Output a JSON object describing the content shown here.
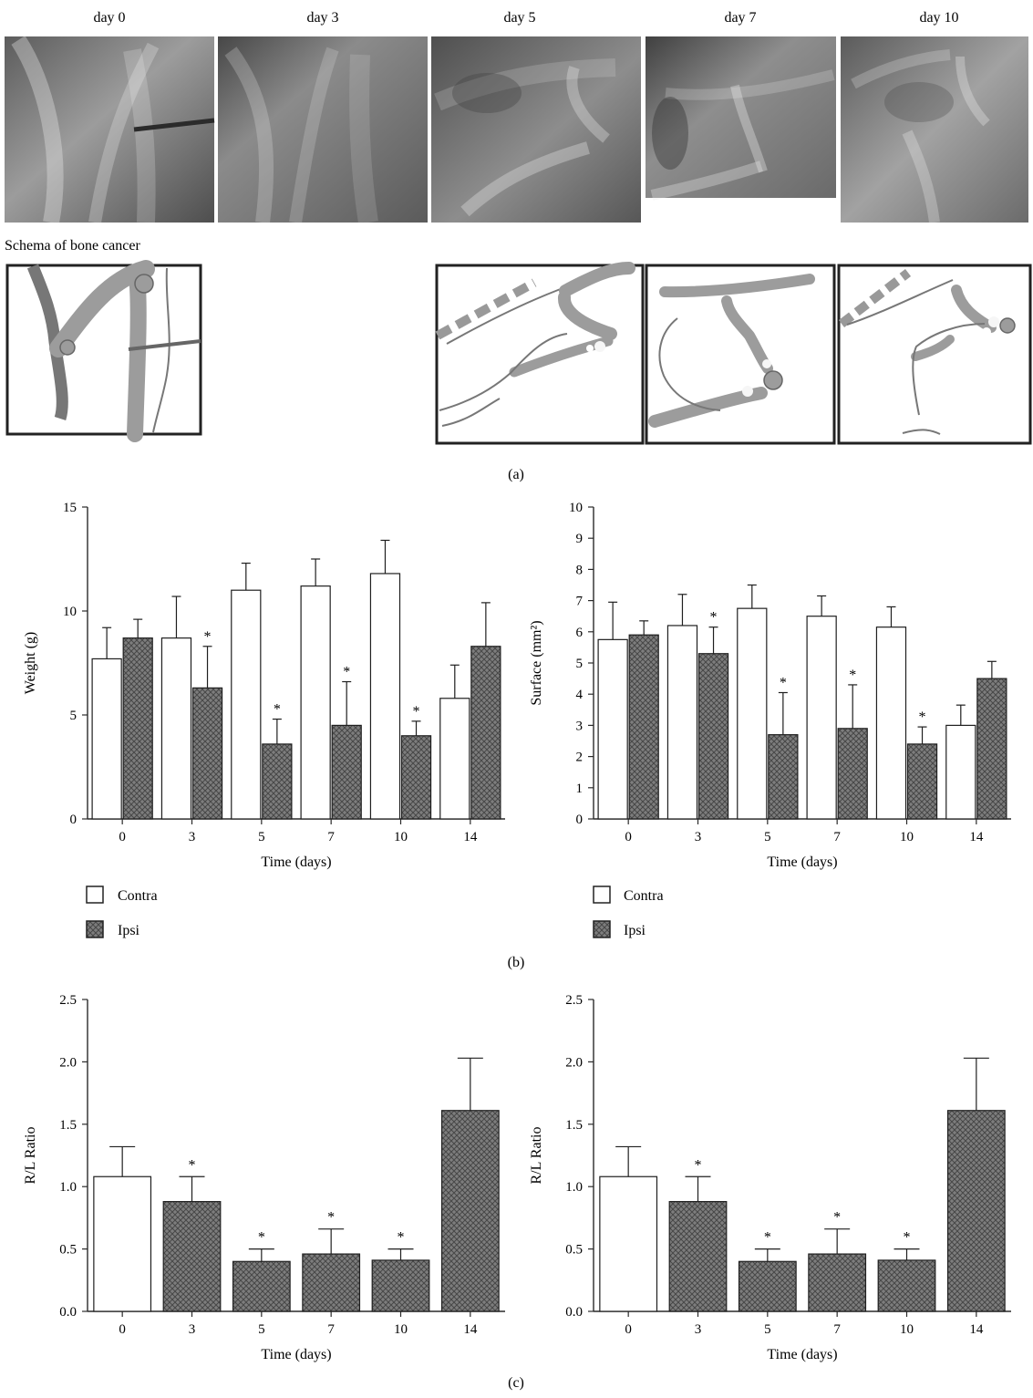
{
  "panel_a": {
    "day_labels": [
      "day 0",
      "day 3",
      "day 5",
      "day 7",
      "day 10"
    ],
    "schema_label": "Schema of bone cancer",
    "caption": "(a)"
  },
  "panel_b": {
    "caption": "(b)"
  },
  "panel_c": {
    "caption": "(c)"
  },
  "colors": {
    "contra_fill": "#ffffff",
    "ipsi_fill": "#7d7d7d",
    "ipsi_pattern": "#3d3d3d",
    "axis": "#2a2a2a",
    "xray_dark": "#474747",
    "xray_light": "#a6a6a6",
    "schema_fill": "#9f9f9f"
  },
  "chart_data": [
    {
      "type": "bar",
      "categories": [
        "0",
        "3",
        "5",
        "7",
        "10",
        "14"
      ],
      "series": [
        {
          "name": "Contra",
          "values": [
            7.7,
            8.7,
            11.0,
            11.2,
            11.8,
            5.8
          ],
          "errors": [
            1.5,
            2.0,
            1.3,
            1.3,
            1.6,
            1.6
          ],
          "significance": [
            false,
            false,
            false,
            false,
            false,
            false
          ]
        },
        {
          "name": "Ipsi",
          "values": [
            8.7,
            6.3,
            3.6,
            4.5,
            4.0,
            8.3
          ],
          "errors": [
            0.9,
            2.0,
            1.2,
            2.1,
            0.7,
            2.1
          ],
          "significance": [
            false,
            true,
            true,
            true,
            true,
            false
          ]
        }
      ],
      "xlabel": "Time (days)",
      "ylabel": "Weight (g)",
      "ylim": [
        0,
        15
      ],
      "yticks": [
        "0",
        "5",
        "10",
        "15"
      ],
      "legend": [
        "Contra",
        "Ipsi"
      ],
      "legend_position": "bottom-left",
      "grid": false
    },
    {
      "type": "bar",
      "categories": [
        "0",
        "3",
        "5",
        "7",
        "10",
        "14"
      ],
      "series": [
        {
          "name": "Contra",
          "values": [
            5.75,
            6.2,
            6.75,
            6.5,
            6.15,
            3.0
          ],
          "errors": [
            1.2,
            1.0,
            0.75,
            0.65,
            0.65,
            0.65
          ],
          "significance": [
            false,
            false,
            false,
            false,
            false,
            false
          ]
        },
        {
          "name": "Ipsi",
          "values": [
            5.9,
            5.3,
            2.7,
            2.9,
            2.4,
            4.5
          ],
          "errors": [
            0.45,
            0.85,
            1.35,
            1.4,
            0.55,
            0.55
          ],
          "significance": [
            false,
            true,
            true,
            true,
            true,
            false
          ]
        }
      ],
      "xlabel": "Time (days)",
      "ylabel": "Surface (mm²)",
      "ylim": [
        0,
        10
      ],
      "yticks": [
        "0",
        "1",
        "2",
        "3",
        "4",
        "5",
        "6",
        "7",
        "8",
        "9",
        "10"
      ],
      "legend": [
        "Contra",
        "Ipsi"
      ],
      "legend_position": "bottom-left",
      "grid": false
    },
    {
      "type": "bar",
      "categories": [
        "0",
        "3",
        "5",
        "7",
        "10",
        "14"
      ],
      "values": [
        1.08,
        0.88,
        0.4,
        0.46,
        0.41,
        1.61
      ],
      "errors": [
        0.24,
        0.2,
        0.1,
        0.2,
        0.09,
        0.42
      ],
      "significance": [
        false,
        true,
        true,
        true,
        true,
        false
      ],
      "fills": [
        "Contra",
        "Ipsi",
        "Ipsi",
        "Ipsi",
        "Ipsi",
        "Ipsi"
      ],
      "xlabel": "Time (days)",
      "ylabel": "R/L Ratio",
      "ylim": [
        0,
        2.5
      ],
      "yticks": [
        "0.0",
        "0.5",
        "1.0",
        "1.5",
        "2.0",
        "2.5"
      ],
      "grid": false
    },
    {
      "type": "bar",
      "categories": [
        "0",
        "3",
        "5",
        "7",
        "10",
        "14"
      ],
      "values": [
        1.08,
        0.88,
        0.4,
        0.46,
        0.41,
        1.61
      ],
      "errors": [
        0.24,
        0.2,
        0.1,
        0.2,
        0.09,
        0.42
      ],
      "significance": [
        false,
        true,
        true,
        true,
        true,
        false
      ],
      "fills": [
        "Contra",
        "Ipsi",
        "Ipsi",
        "Ipsi",
        "Ipsi",
        "Ipsi"
      ],
      "xlabel": "Time (days)",
      "ylabel": "R/L Ratio",
      "ylim": [
        0,
        2.5
      ],
      "yticks": [
        "0.0",
        "0.5",
        "1.0",
        "1.5",
        "2.0",
        "2.5"
      ],
      "grid": false
    }
  ]
}
